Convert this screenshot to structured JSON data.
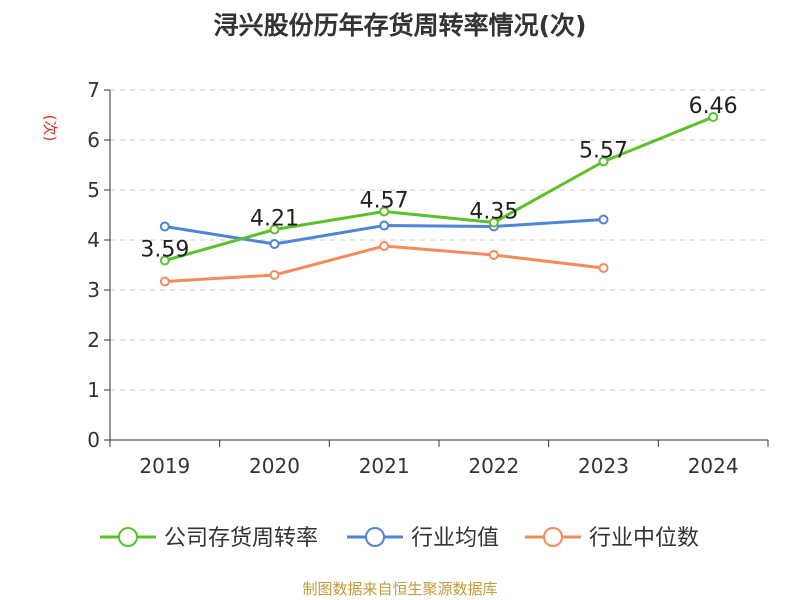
{
  "chart_data": {
    "type": "line",
    "title": "浔兴股份历年存货周转率情况(次)",
    "ylabel": "(次)",
    "xlabel": "",
    "categories": [
      "2019",
      "2020",
      "2021",
      "2022",
      "2023",
      "2024"
    ],
    "ylim": [
      0,
      7
    ],
    "yticks": [
      "0",
      "1",
      "2",
      "3",
      "4",
      "5",
      "6",
      "7"
    ],
    "grid": true,
    "legend_position": "bottom",
    "series": [
      {
        "name": "公司存货周转率",
        "color": "#5cc02a",
        "values": [
          3.59,
          4.21,
          4.57,
          4.35,
          5.57,
          6.46
        ],
        "labels": [
          "3.59",
          "4.21",
          "4.57",
          "4.35",
          "5.57",
          "6.46"
        ]
      },
      {
        "name": "行业均值",
        "color": "#4f84d6",
        "values": [
          4.27,
          3.92,
          4.29,
          4.27,
          4.41,
          null
        ]
      },
      {
        "name": "行业中位数",
        "color": "#f38c5a",
        "values": [
          3.17,
          3.3,
          3.88,
          3.7,
          3.44,
          null
        ]
      }
    ]
  },
  "footer": {
    "source": "制图数据来自恒生聚源数据库"
  },
  "colors": {
    "ylabel": "#d93025",
    "axis": "#333333",
    "grid": "#cccccc"
  }
}
